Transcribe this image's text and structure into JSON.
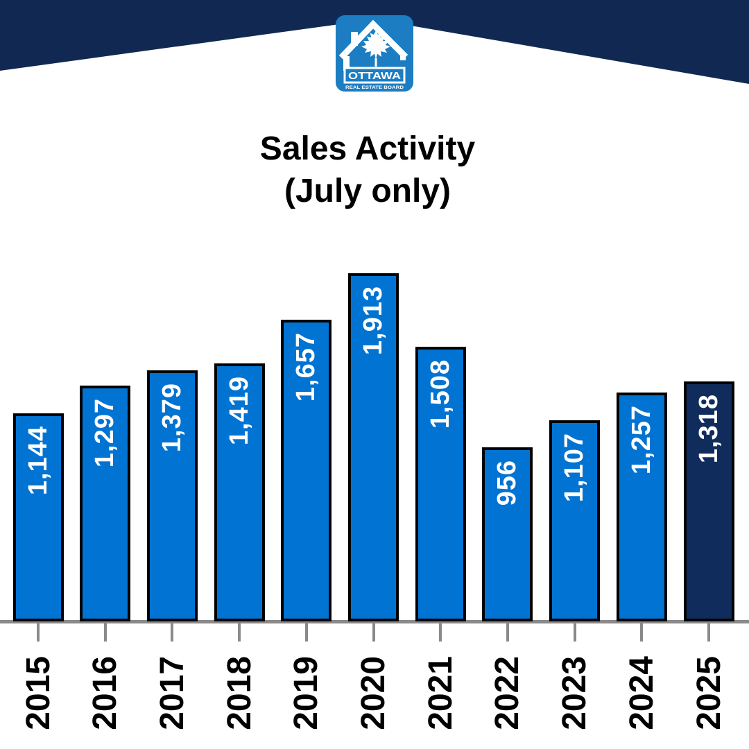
{
  "banner": {
    "color": "#112952"
  },
  "logo": {
    "org": "OTTAWA",
    "tagline": "REAL ESTATE BOARD",
    "blue": "#1C7DC2"
  },
  "title": {
    "line1": "Sales Activity",
    "line2": "(July only)"
  },
  "chart_data": {
    "type": "bar",
    "title": "Sales Activity (July only)",
    "categories": [
      "2015",
      "2016",
      "2017",
      "2018",
      "2019",
      "2020",
      "2021",
      "2022",
      "2023",
      "2024",
      "2025"
    ],
    "values": [
      1144,
      1297,
      1379,
      1419,
      1657,
      1913,
      1508,
      956,
      1107,
      1257,
      1318
    ],
    "value_labels": [
      "1,144",
      "1,297",
      "1,379",
      "1,419",
      "1,657",
      "1,913",
      "1,508",
      "956",
      "1,107",
      "1,257",
      "1,318"
    ],
    "bar_color": "#0173D2",
    "highlight_color": "#102C5C",
    "highlight_category": "2025",
    "bar_border_color": "#000000",
    "value_label_color": "#FFFFFF",
    "axis_color": "#8A8A8A",
    "xlabel": "",
    "ylabel": "",
    "grid": false,
    "legend": false
  }
}
